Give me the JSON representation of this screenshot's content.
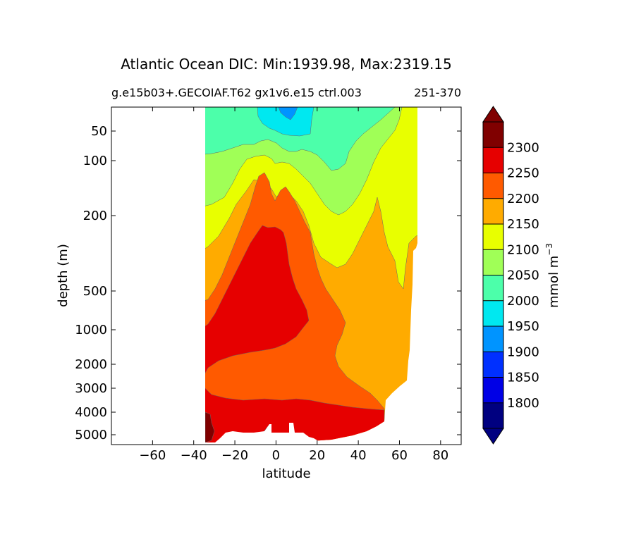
{
  "chart_data": {
    "type": "contour",
    "title": "Atlantic Ocean DIC: Min:1939.98, Max:2319.15",
    "subtitle_left": "g.e15b03+.GECOIAF.T62 gx1v6.e15 ctrl.003",
    "subtitle_right": "251-370",
    "xlabel": "latitude",
    "ylabel": "depth (m)",
    "xlim": [
      -80,
      90
    ],
    "x_ticks": [
      -60,
      -40,
      -20,
      0,
      20,
      40,
      60,
      80
    ],
    "x_tick_labels": [
      "−60",
      "−40",
      "−20",
      "0",
      "20",
      "40",
      "60",
      "80"
    ],
    "y_ticks": [
      50,
      100,
      200,
      500,
      1000,
      2000,
      3000,
      4000,
      5000
    ],
    "y_tick_labels": [
      "50",
      "100",
      "200",
      "500",
      "1000",
      "2000",
      "3000",
      "4000",
      "5000"
    ],
    "y_inverted": true,
    "colorbar": {
      "label_main": "mmol m",
      "label_exp": "−3",
      "levels": [
        1800,
        1850,
        1900,
        1950,
        2000,
        2050,
        2100,
        2150,
        2200,
        2250,
        2300
      ],
      "level_labels": [
        "1800",
        "1850",
        "1900",
        "1950",
        "2000",
        "2050",
        "2100",
        "2150",
        "2200",
        "2250",
        "2300"
      ],
      "colors": [
        "#000080",
        "#0000e6",
        "#0030ff",
        "#0094ff",
        "#00e8f0",
        "#4cffaa",
        "#a0ff57",
        "#e8ff00",
        "#ffab00",
        "#ff5a00",
        "#e60000",
        "#800000"
      ],
      "extend": "both"
    },
    "grid": false
  }
}
